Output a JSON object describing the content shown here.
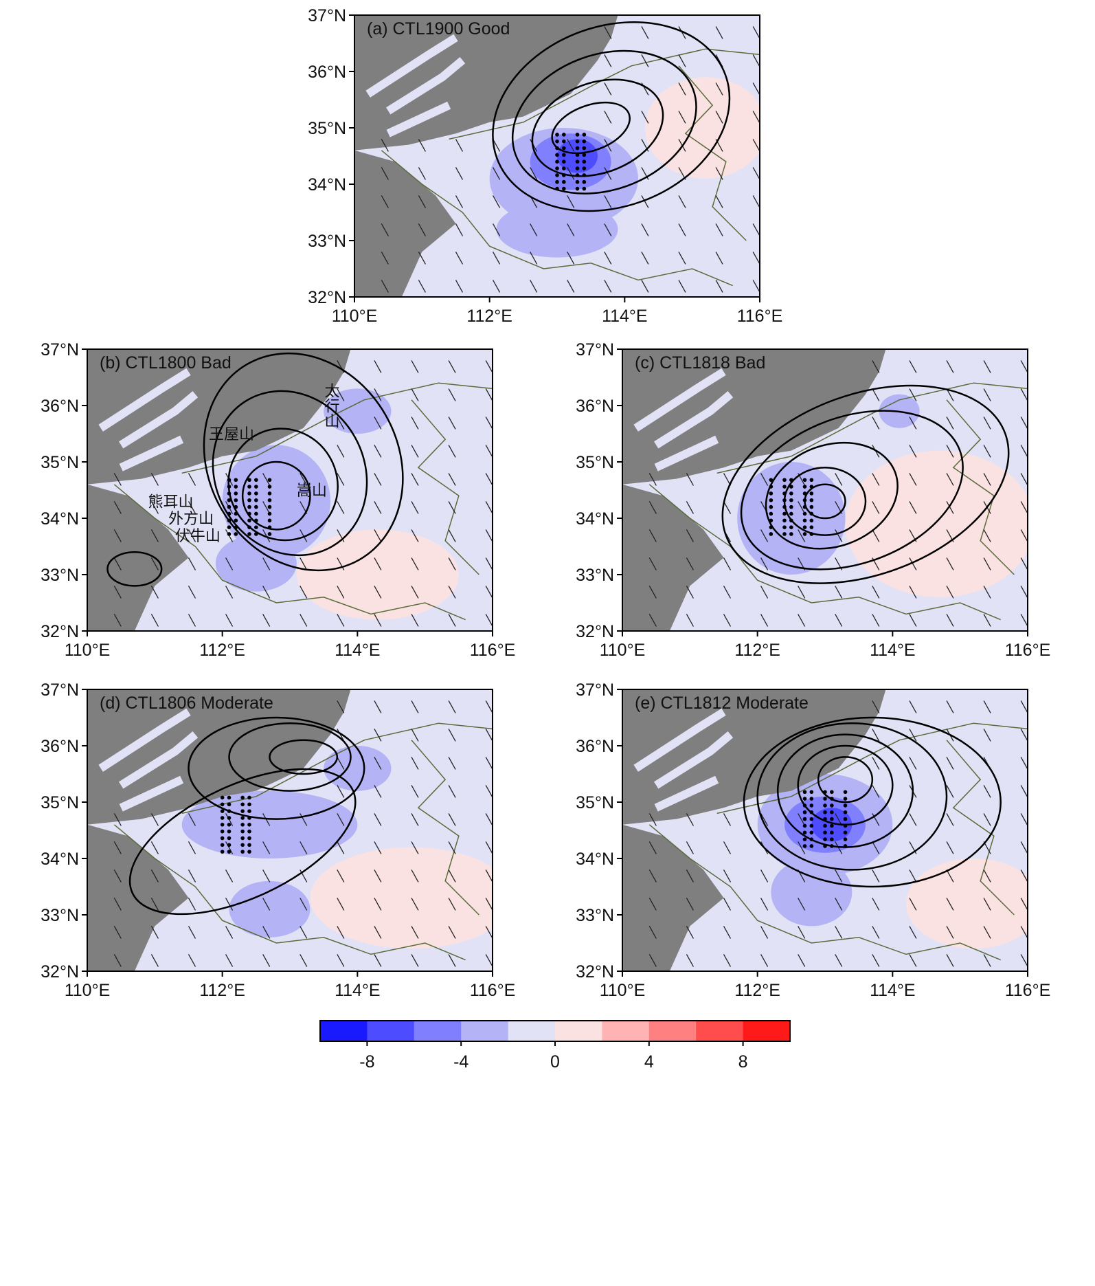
{
  "panels": [
    {
      "title": "(a) CTL1900 Good",
      "xticks": [
        "110°E",
        "112°E",
        "114°E",
        "116°E"
      ],
      "yticks": [
        "37°N",
        "36°N",
        "35°N",
        "34°N",
        "33°N",
        "32°N"
      ]
    },
    {
      "title": "(b) CTL1800 Bad",
      "xticks": [
        "110°E",
        "112°E",
        "114°E",
        "116°E"
      ],
      "yticks": [
        "37°N",
        "36°N",
        "35°N",
        "34°N",
        "33°N",
        "32°N"
      ],
      "labels": [
        "太行山",
        "王屋山",
        "熊耳山",
        "外方山",
        "伏牛山",
        "嵩山"
      ]
    },
    {
      "title": "(c) CTL1818 Bad",
      "xticks": [
        "110°E",
        "112°E",
        "114°E",
        "116°E"
      ],
      "yticks": [
        "37°N",
        "36°N",
        "35°N",
        "34°N",
        "33°N",
        "32°N"
      ]
    },
    {
      "title": "(d) CTL1806 Moderate",
      "xticks": [
        "110°E",
        "112°E",
        "114°E",
        "116°E"
      ],
      "yticks": [
        "37°N",
        "36°N",
        "35°N",
        "34°N",
        "33°N",
        "32°N"
      ]
    },
    {
      "title": "(e) CTL1812 Moderate",
      "xticks": [
        "110°E",
        "112°E",
        "114°E",
        "116°E"
      ],
      "yticks": [
        "37°N",
        "36°N",
        "35°N",
        "34°N",
        "33°N",
        "32°N"
      ]
    }
  ],
  "colorbar": {
    "range": [
      -10,
      10
    ],
    "ticks": [
      -8,
      -4,
      0,
      4,
      8
    ],
    "colors": [
      "#1a1aff",
      "#4d4dff",
      "#8080ff",
      "#b3b3f5",
      "#e2e2f6",
      "#fbe2e2",
      "#ffb3b3",
      "#ff8080",
      "#ff4d4d",
      "#ff1a1a"
    ]
  }
}
